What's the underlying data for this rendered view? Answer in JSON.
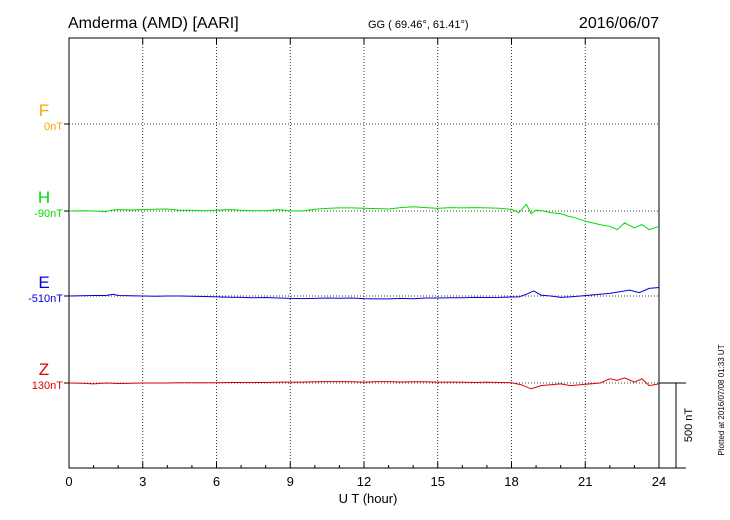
{
  "header": {
    "station": "Amderma (AMD)  [AARI]",
    "coords": "GG ( 69.46°,  61.41°)",
    "date": "2016/06/07"
  },
  "plotted_note": "Plotted at 2016/07/08 01:33 UT",
  "colors": {
    "F": "#ffa500",
    "H": "#00dd00",
    "E": "#0000dd",
    "Z": "#dd0000",
    "axis": "#000000"
  },
  "chart_data": {
    "type": "line",
    "xlabel": "U T (hour)",
    "xlim": [
      0,
      24
    ],
    "xticks": [
      "0",
      "3",
      "6",
      "9",
      "12",
      "15",
      "18",
      "21",
      "24"
    ],
    "grid": true,
    "scale_bar": {
      "label": "500 nT",
      "value_nT": 500
    },
    "series": [
      {
        "name": "F",
        "offset": "0nT",
        "values": []
      },
      {
        "name": "H",
        "offset": "-90nT",
        "x": [
          0,
          0.5,
          1,
          1.5,
          1.7,
          2,
          2.5,
          3,
          3.5,
          4,
          4.5,
          5,
          5.5,
          6,
          6.5,
          7,
          7.5,
          8,
          8.5,
          9,
          9.5,
          10,
          10.5,
          11,
          11.5,
          12,
          12.5,
          13,
          13.5,
          14,
          14.5,
          15,
          15.5,
          16,
          16.5,
          17,
          17.5,
          18,
          18.3,
          18.6,
          18.8,
          19,
          19.3,
          19.6,
          20,
          20.3,
          20.6,
          21,
          21.3,
          21.6,
          22,
          22.3,
          22.6,
          23,
          23.3,
          23.6,
          24
        ],
        "values": [
          0,
          2,
          0,
          -5,
          5,
          8,
          6,
          8,
          10,
          12,
          5,
          5,
          2,
          5,
          8,
          5,
          2,
          2,
          8,
          2,
          0,
          10,
          15,
          18,
          18,
          16,
          14,
          12,
          20,
          25,
          20,
          15,
          20,
          18,
          20,
          18,
          16,
          10,
          -10,
          40,
          -15,
          5,
          0,
          -10,
          -15,
          -30,
          -40,
          -60,
          -70,
          -80,
          -90,
          -110,
          -70,
          -100,
          -80,
          -110,
          -90
        ]
      },
      {
        "name": "E",
        "offset": "-510nT",
        "x": [
          0,
          0.5,
          1,
          1.5,
          1.8,
          2,
          2.5,
          3,
          3.5,
          4,
          4.5,
          5,
          5.5,
          6,
          6.5,
          7,
          7.5,
          8,
          8.5,
          9,
          9.5,
          10,
          10.5,
          11,
          11.5,
          12,
          12.5,
          13,
          13.5,
          14,
          14.5,
          15,
          15.5,
          16,
          16.5,
          17,
          17.5,
          18,
          18.3,
          18.6,
          18.9,
          19.2,
          19.6,
          20,
          20.4,
          20.8,
          21.2,
          21.6,
          22,
          22.4,
          22.8,
          23.2,
          23.6,
          24
        ],
        "values": [
          0,
          2,
          3,
          3,
          10,
          3,
          2,
          0,
          -2,
          0,
          0,
          -2,
          -3,
          -5,
          -7,
          -8,
          -10,
          -9,
          -12,
          -14,
          -15,
          -14,
          -12,
          -13,
          -12,
          -15,
          -17,
          -17,
          -14,
          -16,
          -12,
          -12,
          -10,
          -10,
          -8,
          -9,
          -8,
          -6,
          -5,
          10,
          30,
          5,
          0,
          -8,
          -5,
          0,
          5,
          10,
          15,
          25,
          35,
          20,
          45,
          50
        ]
      },
      {
        "name": "Z",
        "offset": "130nT",
        "x": [
          0,
          0.5,
          1,
          1.5,
          2,
          2.5,
          3,
          3.5,
          4,
          4.5,
          5,
          5.5,
          6,
          6.5,
          7,
          7.5,
          8,
          8.5,
          9,
          9.5,
          10,
          10.5,
          11,
          11.5,
          12,
          12.5,
          13,
          13.5,
          14,
          14.5,
          15,
          15.5,
          16,
          16.5,
          17,
          17.5,
          18,
          18.4,
          18.8,
          19.2,
          19.6,
          20,
          20.4,
          20.8,
          21.2,
          21.6,
          22,
          22.3,
          22.6,
          23,
          23.3,
          23.6,
          24
        ],
        "values": [
          0,
          -2,
          -5,
          0,
          -3,
          -2,
          0,
          0,
          0,
          1,
          2,
          2,
          2,
          3,
          3,
          3,
          3,
          5,
          5,
          5,
          7,
          8,
          8,
          7,
          5,
          8,
          8,
          6,
          7,
          7,
          5,
          5,
          5,
          3,
          5,
          3,
          2,
          -10,
          -35,
          -15,
          -10,
          -5,
          -15,
          -10,
          -5,
          0,
          25,
          15,
          30,
          5,
          25,
          -15,
          -5
        ]
      }
    ]
  }
}
